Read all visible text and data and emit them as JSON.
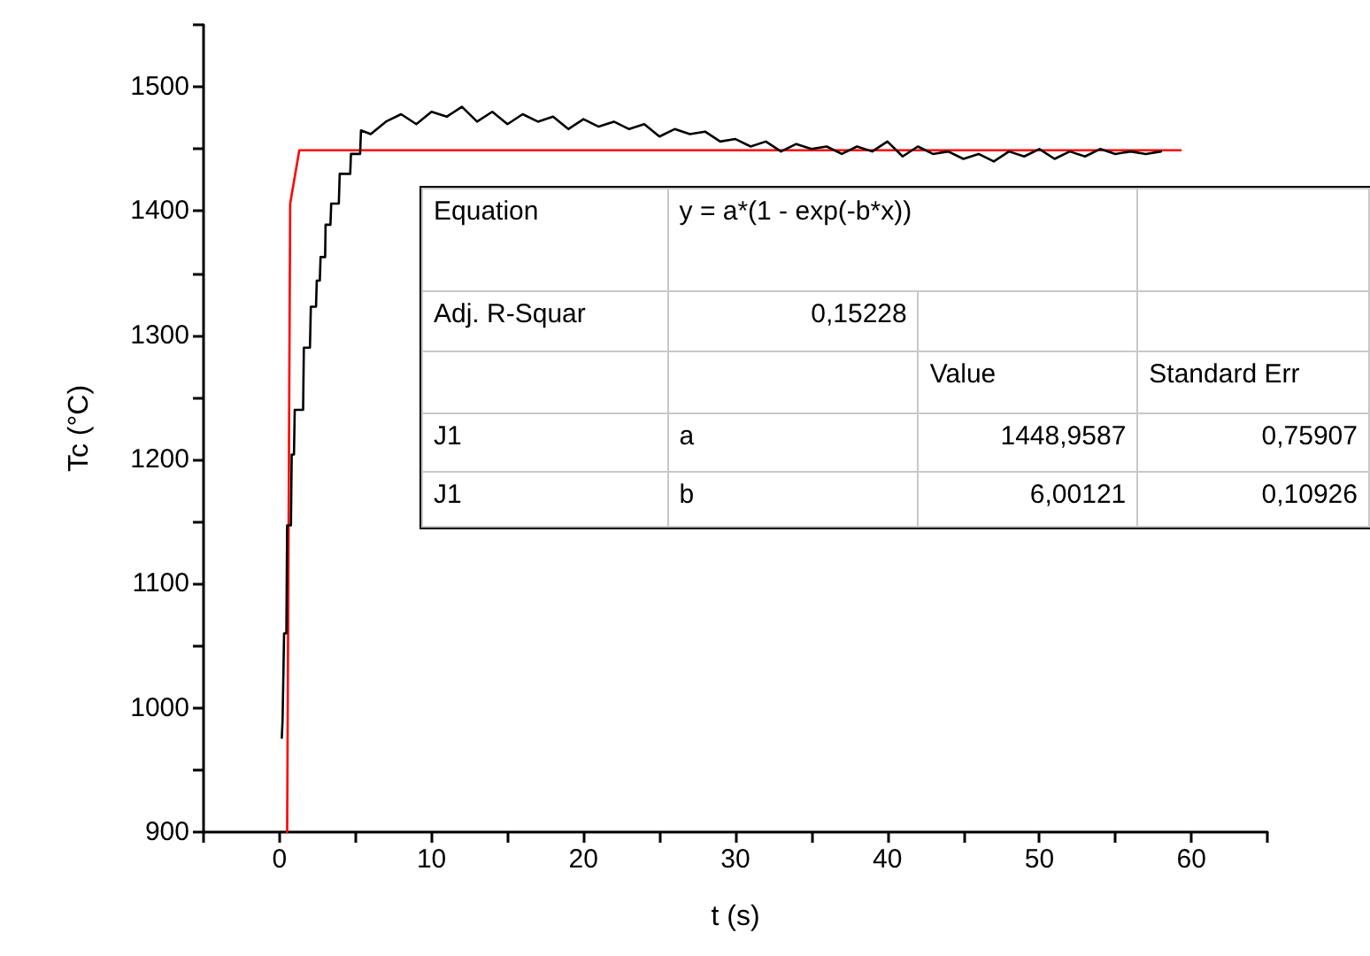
{
  "chart_data": {
    "type": "line",
    "xlabel": "t (s)",
    "ylabel": "Tc (°C)",
    "xlim": [
      -5,
      65
    ],
    "xticks": [
      {
        "value": -5,
        "label": null
      },
      0,
      {
        "value": 5,
        "label": null
      },
      10,
      {
        "value": 15,
        "label": null
      },
      20,
      {
        "value": 25,
        "label": null
      },
      30,
      {
        "value": 35,
        "label": null
      },
      40,
      {
        "value": 45,
        "label": null
      },
      50,
      {
        "value": 55,
        "label": null
      },
      60,
      {
        "value": 65,
        "label": null
      }
    ],
    "ylim": [
      900,
      1550
    ],
    "yticks": [
      900,
      {
        "value": 950,
        "label": null
      },
      1000,
      {
        "value": 1050,
        "label": null
      },
      1100,
      {
        "value": 1150,
        "label": null
      },
      1200,
      {
        "value": 1250,
        "label": null
      },
      1300,
      {
        "value": 1350,
        "label": null
      },
      1400,
      {
        "value": 1450,
        "label": null
      },
      1500,
      {
        "value": 1550,
        "label": null
      }
    ],
    "grid": false,
    "marker": "none",
    "line_style": "solid",
    "series": [
      {
        "color": "#000000",
        "x": [
          0.15,
          0.2,
          0.25,
          0.3,
          0.45,
          0.5,
          0.75,
          0.8,
          0.95,
          1.0,
          1.55,
          1.6,
          2.0,
          2.06,
          2.4,
          2.45,
          2.65,
          2.7,
          3.0,
          3.03,
          3.35,
          3.4,
          3.9,
          3.96,
          4.65,
          4.7,
          5.3,
          5.36,
          6,
          7,
          8,
          9,
          10,
          11,
          12,
          13,
          14,
          15,
          16,
          17,
          18,
          19,
          20,
          21,
          22,
          23,
          24,
          25,
          26,
          27,
          28,
          29,
          30,
          31,
          32,
          33,
          34,
          35,
          36,
          37,
          38,
          39,
          40,
          41,
          42,
          43,
          44,
          45,
          46,
          47,
          48,
          49,
          50,
          51,
          52,
          53,
          54,
          55,
          56,
          57,
          58
        ],
        "values": [
          976,
          990,
          990,
          1060,
          1060,
          1147,
          1147,
          1204,
          1204,
          1240,
          1240,
          1290,
          1290,
          1323,
          1323,
          1344,
          1344,
          1363,
          1363,
          1389,
          1389,
          1406,
          1406,
          1430,
          1430,
          1446,
          1446,
          1465,
          1462,
          1472,
          1478,
          1470,
          1480,
          1476,
          1484,
          1472,
          1480,
          1470,
          1478,
          1472,
          1476,
          1466,
          1474,
          1468,
          1472,
          1466,
          1470,
          1460,
          1466,
          1462,
          1464,
          1456,
          1458,
          1452,
          1456,
          1448,
          1454,
          1450,
          1452,
          1446,
          1452,
          1448,
          1456,
          1444,
          1452,
          1446,
          1448,
          1442,
          1446,
          1440,
          1448,
          1444,
          1450,
          1442,
          1448,
          1444,
          1450,
          1446,
          1448,
          1446,
          1448
        ]
      },
      {
        "color": "#ff0000",
        "x": [
          0.5,
          0.7,
          1.3,
          59.3
        ],
        "values": [
          900,
          1406,
          1449,
          1449
        ]
      }
    ],
    "annotations": [
      "Equation",
      "y = a*(1 - exp(-b*x))",
      "Adj. R-Squar",
      "0,15228",
      "Value",
      "Standard Err",
      "J1",
      "a",
      "1448,9587",
      "0,75907",
      "J1",
      "b",
      "6,00121",
      "0,10926"
    ]
  }
}
